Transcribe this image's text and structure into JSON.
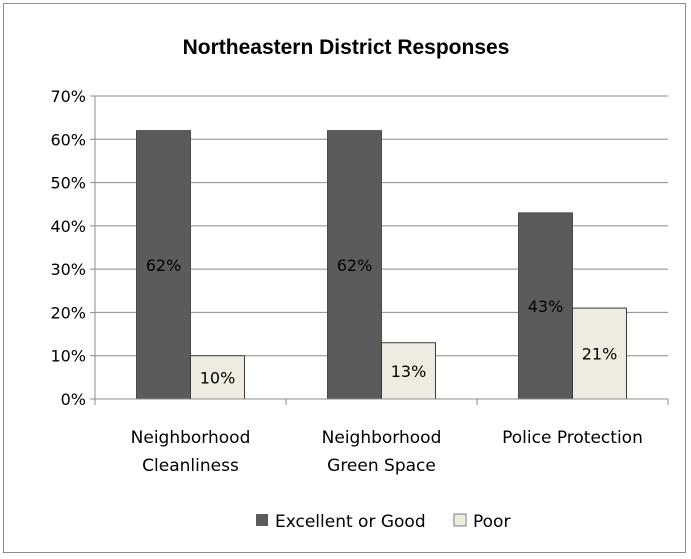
{
  "chart_data": {
    "type": "bar",
    "title": "Northeastern District Responses",
    "categories": [
      [
        "Neighborhood",
        "Cleanliness"
      ],
      [
        "Neighborhood",
        "Green Space"
      ],
      [
        "Police Protection"
      ]
    ],
    "series": [
      {
        "name": "Excellent or Good",
        "values": [
          62,
          62,
          43
        ],
        "labels": [
          "62%",
          "62%",
          "43%"
        ],
        "color": "#5b5b5b"
      },
      {
        "name": "Poor",
        "values": [
          10,
          13,
          21
        ],
        "labels": [
          "10%",
          "13%",
          "21%"
        ],
        "color": "#eeece1"
      }
    ],
    "ylim": [
      0,
      70
    ],
    "yticks": [
      0,
      10,
      20,
      30,
      40,
      50,
      60,
      70
    ],
    "ytick_labels": [
      "0%",
      "10%",
      "20%",
      "30%",
      "40%",
      "50%",
      "60%",
      "70%"
    ],
    "xlabel": "",
    "ylabel": "",
    "grid": true,
    "legend": "bottom"
  }
}
